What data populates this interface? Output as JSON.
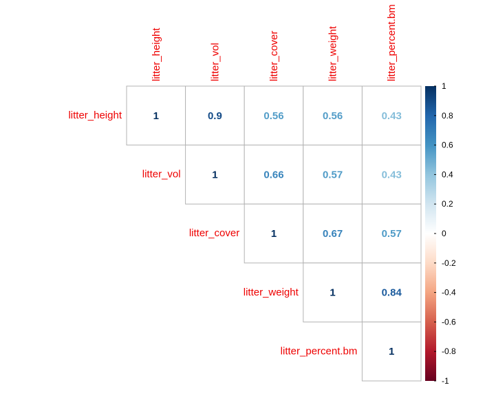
{
  "chart_data": {
    "type": "heatmap",
    "subtype": "correlation-matrix-upper",
    "variables": [
      "litter_height",
      "litter_vol",
      "litter_cover",
      "litter_weight",
      "litter_percent.bm"
    ],
    "matrix": [
      [
        1,
        0.9,
        0.56,
        0.56,
        0.43
      ],
      [
        0.9,
        1,
        0.66,
        0.57,
        0.43
      ],
      [
        0.56,
        0.66,
        1,
        0.67,
        0.57
      ],
      [
        0.56,
        0.57,
        0.67,
        1,
        0.84
      ],
      [
        0.43,
        0.43,
        0.57,
        0.84,
        1
      ]
    ],
    "cells": [
      {
        "row": 0,
        "col": 0,
        "label": "1"
      },
      {
        "row": 0,
        "col": 1,
        "label": "0.9"
      },
      {
        "row": 0,
        "col": 2,
        "label": "0.56"
      },
      {
        "row": 0,
        "col": 3,
        "label": "0.56"
      },
      {
        "row": 0,
        "col": 4,
        "label": "0.43"
      },
      {
        "row": 1,
        "col": 1,
        "label": "1"
      },
      {
        "row": 1,
        "col": 2,
        "label": "0.66"
      },
      {
        "row": 1,
        "col": 3,
        "label": "0.57"
      },
      {
        "row": 1,
        "col": 4,
        "label": "0.43"
      },
      {
        "row": 2,
        "col": 2,
        "label": "1"
      },
      {
        "row": 2,
        "col": 3,
        "label": "0.67"
      },
      {
        "row": 2,
        "col": 4,
        "label": "0.57"
      },
      {
        "row": 3,
        "col": 3,
        "label": "1"
      },
      {
        "row": 3,
        "col": 4,
        "label": "0.84"
      },
      {
        "row": 4,
        "col": 4,
        "label": "1"
      }
    ],
    "colorbar": {
      "range": [
        -1,
        1
      ],
      "ticks": [
        "1",
        "0.8",
        "0.6",
        "0.4",
        "0.2",
        "0",
        "-0.2",
        "-0.4",
        "-0.6",
        "-0.8",
        "-1"
      ]
    },
    "colors": {
      "label": "#ee0000",
      "grid": "#b3b3b3",
      "scale": [
        "#67001f",
        "#b2182b",
        "#d6604d",
        "#f4a582",
        "#fddbc7",
        "#ffffff",
        "#d1e5f0",
        "#92c5de",
        "#4393c3",
        "#2166ac",
        "#053061"
      ]
    }
  }
}
